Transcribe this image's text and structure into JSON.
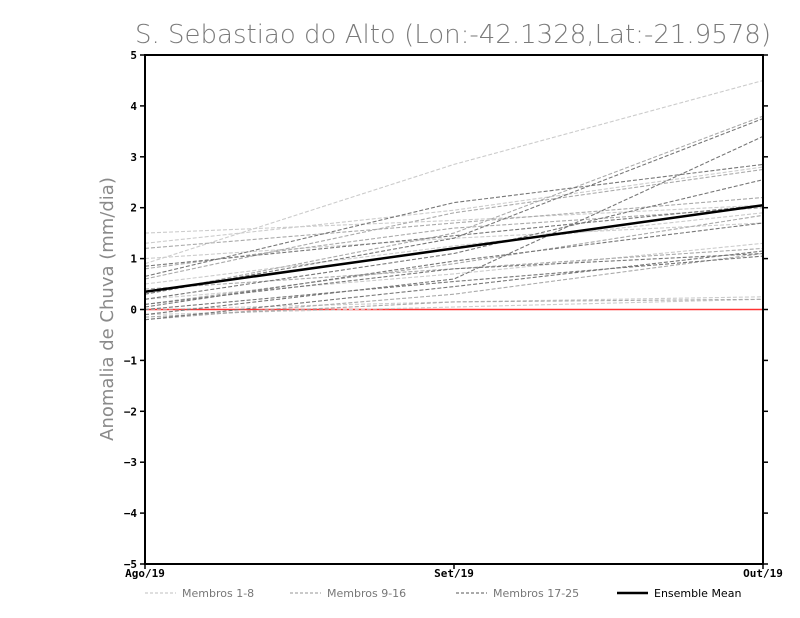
{
  "chart_data": {
    "type": "line",
    "title": "S. Sebastiao do Alto (Lon:-42.1328,Lat:-21.9578)",
    "xlabel": "",
    "ylabel": "Anomalia de Chuva (mm/dia)",
    "categories": [
      "Ago/19",
      "Set/19",
      "Out/19"
    ],
    "ylim": [
      -5,
      5
    ],
    "yticks": [
      -5,
      -4,
      -3,
      -2,
      -1,
      0,
      1,
      2,
      3,
      4,
      5
    ],
    "grid": false,
    "reference_line": {
      "y": 0,
      "color": "#ff3333"
    },
    "legend_position": "bottom",
    "legend": [
      {
        "label": "Membros 1-8",
        "color": "#cccccc",
        "style": "dashed"
      },
      {
        "label": "Membros 9-16",
        "color": "#aaaaaa",
        "style": "dashed"
      },
      {
        "label": "Membros 17-25",
        "color": "#777777",
        "style": "dashed"
      },
      {
        "label": "Ensemble Mean",
        "color": "#000000",
        "style": "solid"
      }
    ],
    "series": [
      {
        "group": "Membros 1-8",
        "color": "#cccccc",
        "values": [
          0.9,
          2.85,
          4.5
        ]
      },
      {
        "group": "Membros 1-8",
        "color": "#cccccc",
        "values": [
          1.5,
          1.75,
          2.05
        ]
      },
      {
        "group": "Membros 1-8",
        "color": "#cccccc",
        "values": [
          0.2,
          0.7,
          1.3
        ]
      },
      {
        "group": "Membros 1-8",
        "color": "#cccccc",
        "values": [
          0.0,
          0.15,
          0.25
        ]
      },
      {
        "group": "Membros 1-8",
        "color": "#cccccc",
        "values": [
          1.3,
          1.95,
          2.8
        ]
      },
      {
        "group": "Membros 1-8",
        "color": "#cccccc",
        "values": [
          -0.1,
          0.05,
          0.2
        ]
      },
      {
        "group": "Membros 1-8",
        "color": "#cccccc",
        "values": [
          0.5,
          1.25,
          1.9
        ]
      },
      {
        "group": "Membros 1-8",
        "color": "#cccccc",
        "values": [
          1.0,
          1.4,
          1.7
        ]
      },
      {
        "group": "Membros 9-16",
        "color": "#aaaaaa",
        "values": [
          0.6,
          1.9,
          2.75
        ]
      },
      {
        "group": "Membros 9-16",
        "color": "#aaaaaa",
        "values": [
          0.8,
          1.6,
          2.0
        ]
      },
      {
        "group": "Membros 9-16",
        "color": "#aaaaaa",
        "values": [
          -0.2,
          0.3,
          1.1
        ]
      },
      {
        "group": "Membros 9-16",
        "color": "#aaaaaa",
        "values": [
          0.1,
          0.9,
          1.85
        ]
      },
      {
        "group": "Membros 9-16",
        "color": "#aaaaaa",
        "values": [
          0.3,
          1.5,
          3.8
        ]
      },
      {
        "group": "Membros 9-16",
        "color": "#aaaaaa",
        "values": [
          -0.15,
          0.15,
          0.2
        ]
      },
      {
        "group": "Membros 9-16",
        "color": "#aaaaaa",
        "values": [
          1.2,
          1.7,
          2.2
        ]
      },
      {
        "group": "Membros 9-16",
        "color": "#aaaaaa",
        "values": [
          0.4,
          0.8,
          1.2
        ]
      },
      {
        "group": "Membros 17-25",
        "color": "#777777",
        "values": [
          0.65,
          2.1,
          2.85
        ]
      },
      {
        "group": "Membros 17-25",
        "color": "#777777",
        "values": [
          0.3,
          1.4,
          3.75
        ]
      },
      {
        "group": "Membros 17-25",
        "color": "#777777",
        "values": [
          -0.1,
          0.6,
          3.4
        ]
      },
      {
        "group": "Membros 17-25",
        "color": "#777777",
        "values": [
          0.1,
          0.8,
          1.1
        ]
      },
      {
        "group": "Membros 17-25",
        "color": "#777777",
        "values": [
          0.2,
          1.1,
          2.55
        ]
      },
      {
        "group": "Membros 17-25",
        "color": "#777777",
        "values": [
          -0.2,
          0.45,
          1.15
        ]
      },
      {
        "group": "Membros 17-25",
        "color": "#777777",
        "values": [
          0.85,
          1.45,
          2.05
        ]
      },
      {
        "group": "Membros 17-25",
        "color": "#777777",
        "values": [
          0.05,
          0.95,
          1.7
        ]
      },
      {
        "group": "Membros 17-25",
        "color": "#777777",
        "values": [
          0.0,
          0.55,
          1.05
        ]
      },
      {
        "group": "Ensemble Mean",
        "color": "#000000",
        "values": [
          0.35,
          1.2,
          2.05
        ],
        "mean": true
      }
    ]
  }
}
